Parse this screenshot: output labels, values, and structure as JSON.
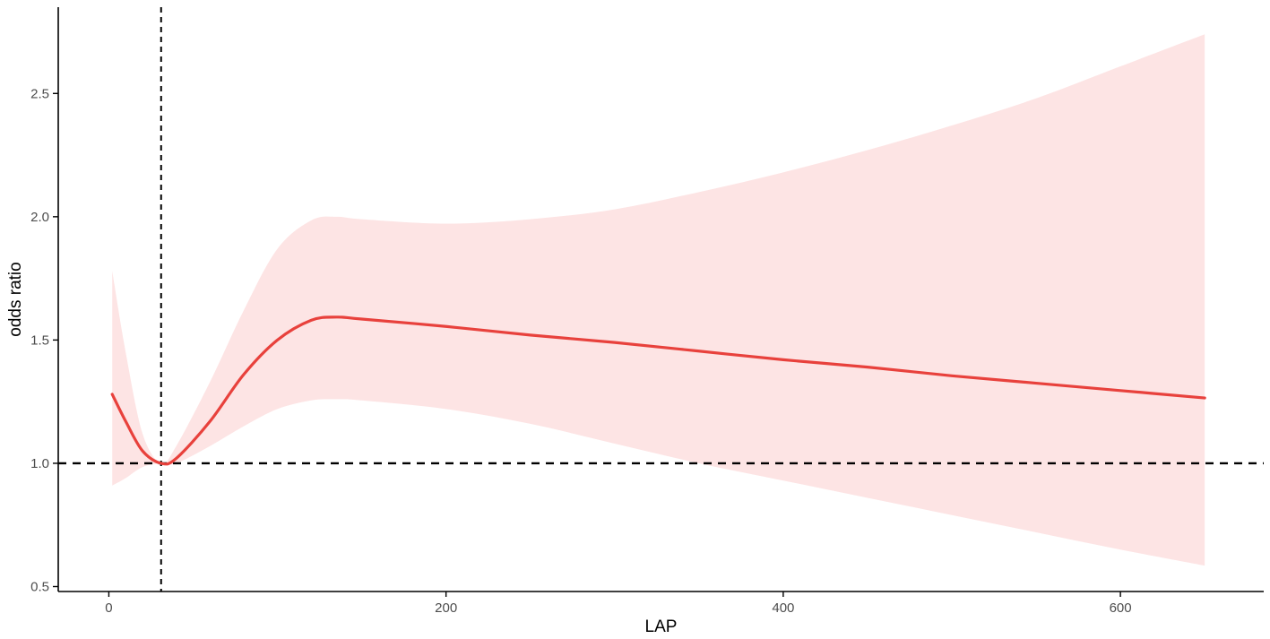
{
  "chart_data": {
    "type": "line",
    "title": "",
    "xlabel": "LAP",
    "ylabel": "odds ratio",
    "xlim": [
      -30,
      685
    ],
    "ylim": [
      0.48,
      2.85
    ],
    "x_ticks": [
      0,
      200,
      400,
      600
    ],
    "y_ticks": [
      0.5,
      1.0,
      1.5,
      2.0,
      2.5
    ],
    "x_tick_labels": [
      "0",
      "200",
      "400",
      "600"
    ],
    "y_tick_labels": [
      "0.5",
      "1.0",
      "1.5",
      "2.0",
      "2.5"
    ],
    "grid": false,
    "legend": "none",
    "reference_lines": {
      "horizontal_y": 1.0,
      "vertical_x": 31
    },
    "series": [
      {
        "x": [
          2,
          10,
          20,
          31,
          40,
          60,
          80,
          100,
          120,
          135,
          150,
          200,
          250,
          300,
          350,
          400,
          450,
          500,
          550,
          600,
          650
        ],
        "y": [
          1.28,
          1.17,
          1.05,
          1.0,
          1.02,
          1.17,
          1.36,
          1.5,
          1.58,
          1.593,
          1.585,
          1.555,
          1.52,
          1.49,
          1.455,
          1.42,
          1.39,
          1.355,
          1.325,
          1.295,
          1.265
        ],
        "ci_lower": [
          0.91,
          0.94,
          0.985,
          1.0,
          1.0,
          1.07,
          1.15,
          1.22,
          1.255,
          1.26,
          1.255,
          1.22,
          1.16,
          1.08,
          1.0,
          0.93,
          0.86,
          0.79,
          0.72,
          0.65,
          0.585
        ],
        "ci_upper": [
          1.78,
          1.45,
          1.12,
          1.0,
          1.07,
          1.33,
          1.62,
          1.87,
          1.985,
          2.0,
          1.99,
          1.972,
          1.99,
          2.03,
          2.1,
          2.18,
          2.27,
          2.37,
          2.48,
          2.61,
          2.74
        ]
      }
    ],
    "colors": {
      "line": "#e8413c",
      "ribbon": "#fde4e4",
      "reference": "#000000",
      "axis": "#000000",
      "tick_text": "#4d4d4d"
    }
  }
}
